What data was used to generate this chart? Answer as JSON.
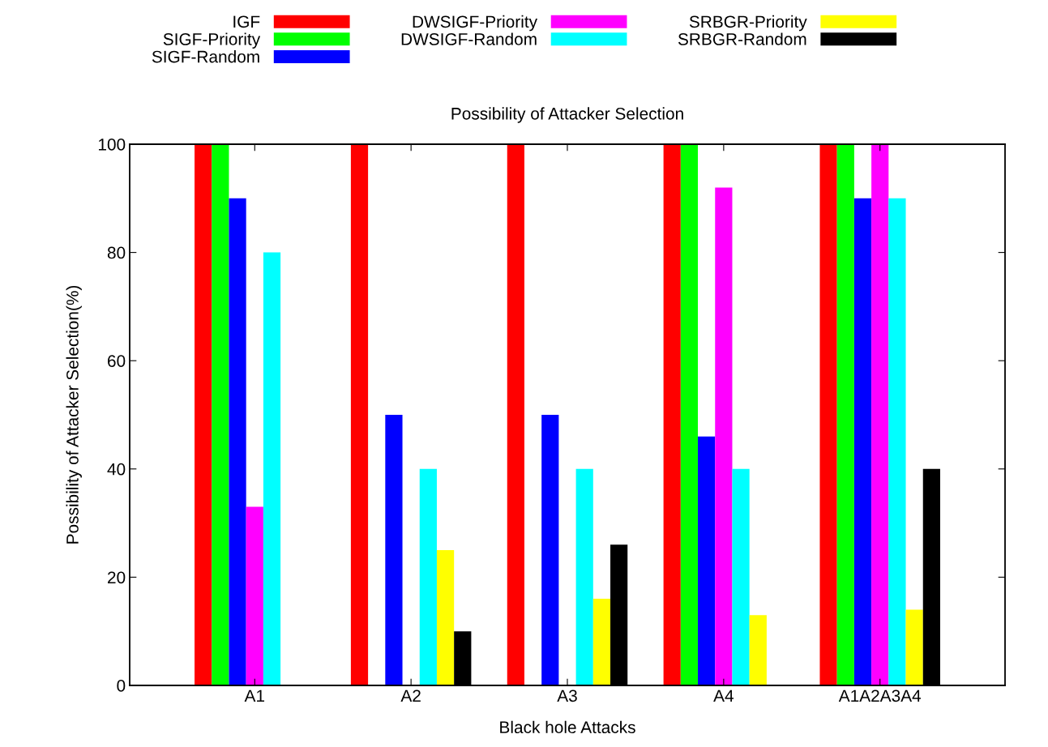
{
  "chart_data": {
    "type": "bar",
    "title": "Possibility of Attacker Selection",
    "xlabel": "Black hole Attacks",
    "ylabel": "Possibility of Attacker Selection(%)",
    "categories": [
      "A1",
      "A2",
      "A3",
      "A4",
      "A1A2A3A4"
    ],
    "series": [
      {
        "name": "IGF",
        "color": "#ff0000",
        "values": [
          100,
          100,
          100,
          100,
          100
        ]
      },
      {
        "name": "SIGF-Priority",
        "color": "#00ff00",
        "values": [
          100,
          0,
          0,
          100,
          100
        ]
      },
      {
        "name": "SIGF-Random",
        "color": "#0000ff",
        "values": [
          90,
          50,
          50,
          46,
          90
        ]
      },
      {
        "name": "DWSIGF-Priority",
        "color": "#ff00ff",
        "values": [
          33,
          0,
          0,
          92,
          100
        ]
      },
      {
        "name": "DWSIGF-Random",
        "color": "#00ffff",
        "values": [
          80,
          40,
          40,
          40,
          90
        ]
      },
      {
        "name": "SRBGR-Priority",
        "color": "#ffff00",
        "values": [
          0,
          25,
          16,
          13,
          14
        ]
      },
      {
        "name": "SRBGR-Random",
        "color": "#000000",
        "values": [
          0,
          10,
          26,
          0,
          40
        ]
      }
    ],
    "ylim": [
      0,
      100
    ],
    "yticks": [
      0,
      20,
      40,
      60,
      80,
      100
    ],
    "grid": false,
    "legend": "top"
  }
}
